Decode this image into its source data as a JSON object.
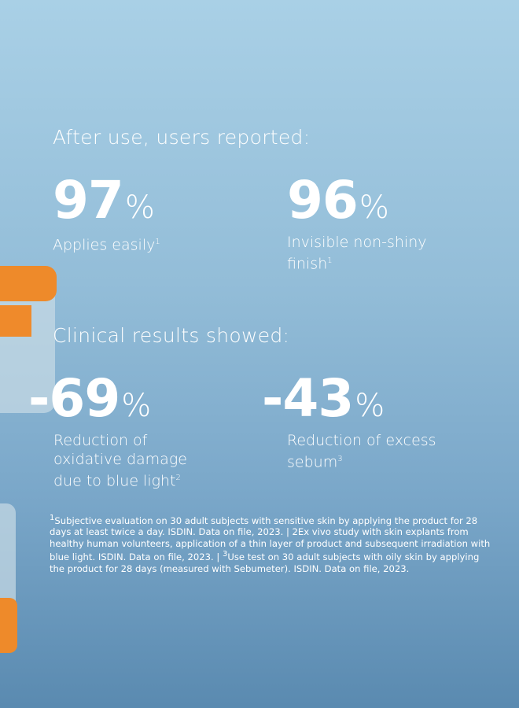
{
  "sections": [
    {
      "heading": "After use, users reported:",
      "stats": [
        {
          "value": "97",
          "unit": "%",
          "label": "Applies easily",
          "sup": "1"
        },
        {
          "value": "96",
          "unit": "%",
          "label": "Invisible non-shiny finish",
          "sup": "1"
        }
      ]
    },
    {
      "heading": "Clinical results showed:",
      "stats": [
        {
          "value": "-69",
          "unit": "%",
          "label": "Reduction of oxidative damage due to blue light",
          "sup": "2"
        },
        {
          "value": "-43",
          "unit": "%",
          "label": "Reduction of excess sebum",
          "sup": "3"
        }
      ]
    }
  ],
  "footnotes": [
    {
      "sup": "1",
      "text": "Subjective evaluation on 30 adult subjects with sensitive skin by applying the product for 28 days at least twice a day. ISDIN. Data on file, 2023. | 2Ex vivo study with skin explants from healthy human volunteers, application of a thin layer of product and subsequent irradiation with blue light. ISDIN. Data on file, 2023. | "
    },
    {
      "sup": "3",
      "text": "Use test on 30 adult subjects with oily skin by applying the product for 28 days (measured with Sebumeter). ISDIN. Data on file, 2023."
    }
  ]
}
